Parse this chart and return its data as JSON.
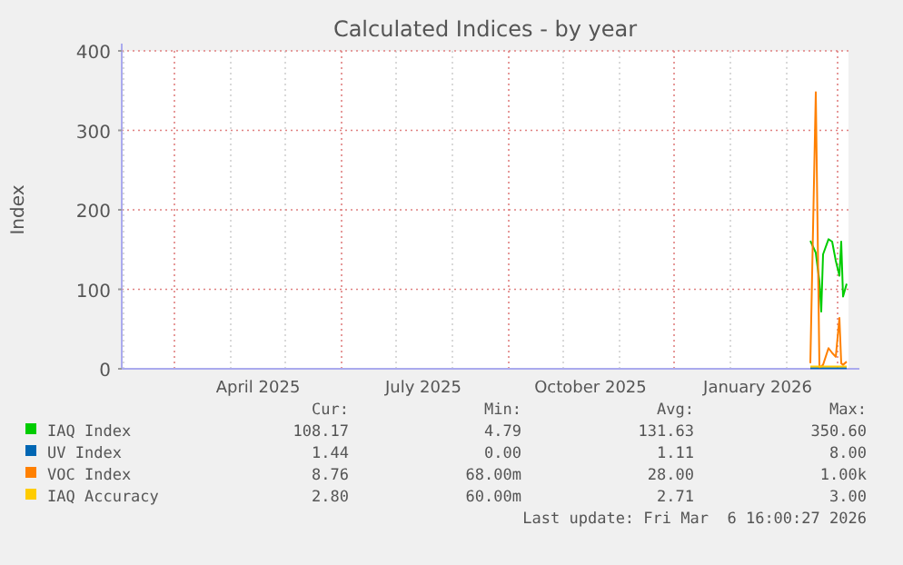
{
  "chart_data": {
    "type": "line",
    "title": "Calculated Indices - by year",
    "ylabel": "Index",
    "xlim": [
      "2025-01-31",
      "2026-03-07"
    ],
    "xticks": [
      {
        "value": "2025-02-01",
        "label": null
      },
      {
        "value": "2025-03-01",
        "label": null
      },
      {
        "value": "2025-04-01",
        "label": null
      },
      {
        "value": "2025-04-16",
        "label": "April 2025"
      },
      {
        "value": "2025-05-01",
        "label": null
      },
      {
        "value": "2025-06-01",
        "label": null
      },
      {
        "value": "2025-07-01",
        "label": null
      },
      {
        "value": "2025-07-16",
        "label": "July 2025"
      },
      {
        "value": "2025-08-01",
        "label": null
      },
      {
        "value": "2025-09-01",
        "label": null
      },
      {
        "value": "2025-10-01",
        "label": null
      },
      {
        "value": "2025-10-16",
        "label": "October 2025"
      },
      {
        "value": "2025-11-01",
        "label": null
      },
      {
        "value": "2025-12-01",
        "label": null
      },
      {
        "value": "2026-01-01",
        "label": null
      },
      {
        "value": "2026-01-16",
        "label": "January 2026"
      },
      {
        "value": "2026-02-01",
        "label": null
      },
      {
        "value": "2026-03-01",
        "label": null
      }
    ],
    "ylim": [
      0,
      400
    ],
    "yticks": [
      0,
      100,
      200,
      300,
      400
    ],
    "grid": true,
    "legend": "bottom",
    "x": [
      "2026-02-14",
      "2026-02-17",
      "2026-02-19",
      "2026-02-20",
      "2026-02-21",
      "2026-02-24",
      "2026-02-26",
      "2026-02-28",
      "2026-03-02",
      "2026-03-03",
      "2026-03-04",
      "2026-03-06"
    ],
    "series": [
      {
        "name": "IAQ Index",
        "color": "#00cc00",
        "values": [
          161,
          146,
          110,
          72,
          144,
          163,
          160,
          136,
          117,
          160,
          91,
          107
        ]
      },
      {
        "name": "UV Index",
        "color": "#0066b3",
        "values": [
          1,
          1,
          1,
          1,
          1,
          1,
          1,
          1,
          1,
          1,
          1,
          1
        ]
      },
      {
        "name": "VOC Index",
        "color": "#ff8000",
        "values": [
          7,
          348,
          2,
          3,
          5,
          26,
          20,
          15,
          64,
          7,
          5,
          9
        ]
      },
      {
        "name": "IAQ Accuracy",
        "color": "#ffcc00",
        "values": [
          3,
          3,
          3,
          3,
          3,
          3,
          3,
          3,
          3,
          3,
          3,
          3
        ]
      }
    ],
    "annotations": [
      "Cur:",
      "Min:",
      "Avg:",
      "Max:",
      "108.17",
      "4.79",
      "131.63",
      "350.60",
      "1.44",
      "0.00",
      "1.11",
      "8.00",
      "8.76",
      "68.00m",
      "28.00",
      "1.00k",
      "2.80",
      "60.00m",
      "2.71",
      "3.00",
      "Last update: Fri Mar  6 16:00:27 2026"
    ]
  }
}
